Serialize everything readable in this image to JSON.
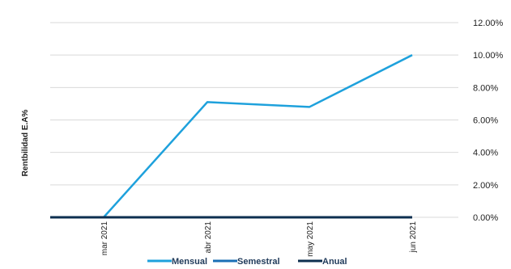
{
  "chart_data": {
    "type": "line",
    "categories": [
      "mar 2021",
      "abr 2021",
      "may 2021",
      "jun 2021"
    ],
    "series": [
      {
        "name": "Mensual",
        "color": "#1ea1dc",
        "values": [
          0.0,
          7.1,
          6.8,
          10.0
        ]
      },
      {
        "name": "Semestral",
        "color": "#1a6fb5",
        "values": [
          0.0,
          0.0,
          0.0,
          0.0
        ]
      },
      {
        "name": "Anual",
        "color": "#0d2f4f",
        "values": [
          0.0,
          0.0,
          0.0,
          0.0
        ]
      }
    ],
    "ylabel": "Rentbilidad  E.A%",
    "xlabel": "",
    "ylim": [
      0,
      12
    ],
    "yticks": [
      "0.00%",
      "2.00%",
      "4.00%",
      "6.00%",
      "8.00%",
      "10.00%",
      "12.00%"
    ],
    "y_axis_side": "right",
    "grid": true,
    "legend_position": "bottom"
  }
}
